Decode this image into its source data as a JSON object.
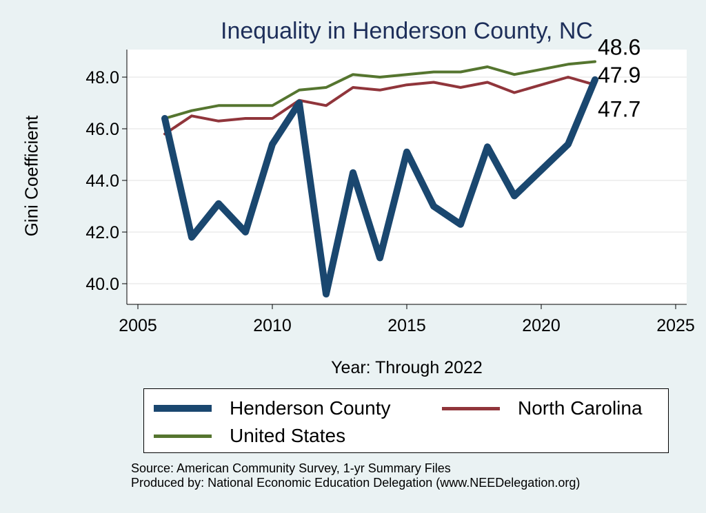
{
  "chart_data": {
    "type": "line",
    "title": "Inequality in Henderson County, NC",
    "xlabel": "Year: Through 2022",
    "ylabel": "Gini Coefficient",
    "xlim": [
      2005,
      2025
    ],
    "ylim": [
      39.2,
      49.2
    ],
    "x_ticks": [
      "2005",
      "2010",
      "2015",
      "2020",
      "2025"
    ],
    "y_ticks": [
      "40.0",
      "42.0",
      "44.0",
      "46.0",
      "48.0"
    ],
    "grid": "horizontal",
    "x": [
      2006,
      2007,
      2008,
      2009,
      2010,
      2011,
      2012,
      2013,
      2014,
      2015,
      2016,
      2017,
      2018,
      2019,
      2020,
      2021,
      2022
    ],
    "series": [
      {
        "name": "Henderson County",
        "color": "#1a476f",
        "values": [
          46.4,
          41.8,
          43.1,
          42.0,
          45.4,
          47.0,
          39.6,
          44.3,
          41.0,
          45.1,
          43.0,
          42.3,
          45.3,
          43.4,
          44.4,
          45.4,
          47.9
        ],
        "end_label": "47.9"
      },
      {
        "name": "North Carolina",
        "color": "#90353b",
        "values": [
          45.8,
          46.5,
          46.3,
          46.4,
          46.4,
          47.1,
          46.9,
          47.6,
          47.5,
          47.7,
          47.8,
          47.6,
          47.8,
          47.4,
          47.7,
          48.0,
          47.7
        ],
        "end_label": "47.7"
      },
      {
        "name": "United States",
        "color": "#55752f",
        "values": [
          46.4,
          46.7,
          46.9,
          46.9,
          46.9,
          47.5,
          47.6,
          48.1,
          48.0,
          48.1,
          48.2,
          48.2,
          48.4,
          48.1,
          48.3,
          48.5,
          48.6
        ],
        "end_label": "48.6"
      }
    ]
  },
  "legend": {
    "items": [
      "Henderson County",
      "North Carolina",
      "United States"
    ]
  },
  "source": {
    "line1": "Source: American Community Survey, 1-yr Summary Files",
    "line2": "Produced by: National Economic Education Delegation (www.NEEDelegation.org)"
  }
}
